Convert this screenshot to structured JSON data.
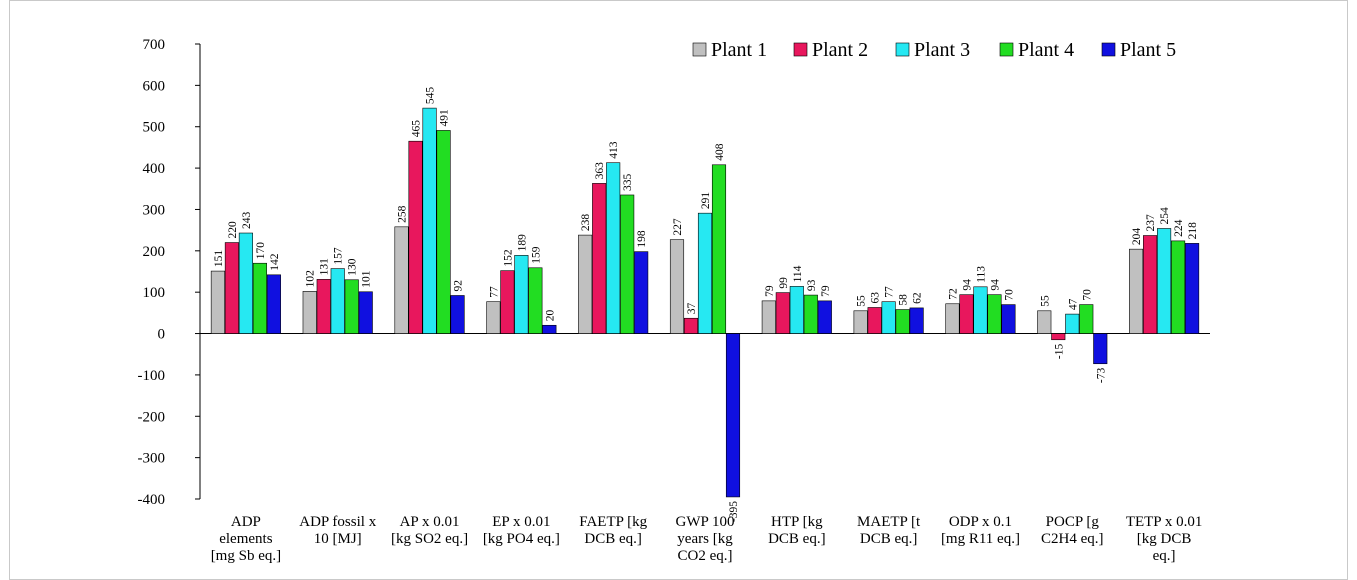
{
  "chart_data": {
    "type": "bar",
    "categories": [
      [
        "ADP",
        "elements",
        "[mg Sb eq.]"
      ],
      [
        "ADP fossil x",
        "10 [MJ]"
      ],
      [
        "AP x 0.01",
        "[kg SO2 eq.]"
      ],
      [
        "EP x 0.01",
        "[kg PO4 eq.]"
      ],
      [
        "FAETP [kg",
        "DCB eq.]"
      ],
      [
        "GWP 100",
        "years [kg",
        "CO2 eq.]"
      ],
      [
        "HTP [kg",
        "DCB eq.]"
      ],
      [
        "MAETP [t",
        "DCB eq.]"
      ],
      [
        "ODP x 0.1",
        "[mg R11 eq.]"
      ],
      [
        "POCP [g",
        "C2H4 eq.]"
      ],
      [
        "TETP x 0.01",
        "[kg DCB",
        "eq.]"
      ]
    ],
    "series": [
      {
        "name": "Plant 1",
        "color": "#c0c0c0",
        "values": [
          151,
          102,
          258,
          77,
          238,
          227,
          79,
          55,
          72,
          55,
          204
        ]
      },
      {
        "name": "Plant 2",
        "color": "#e8175d",
        "values": [
          220,
          131,
          465,
          152,
          363,
          37,
          99,
          63,
          94,
          -15,
          237
        ]
      },
      {
        "name": "Plant 3",
        "color": "#26e8f2",
        "values": [
          243,
          157,
          545,
          189,
          413,
          291,
          114,
          77,
          113,
          47,
          254
        ]
      },
      {
        "name": "Plant 4",
        "color": "#22dd22",
        "values": [
          170,
          130,
          491,
          159,
          335,
          408,
          93,
          58,
          94,
          70,
          224
        ]
      },
      {
        "name": "Plant 5",
        "color": "#1010e0",
        "values": [
          142,
          101,
          92,
          20,
          198,
          -395,
          79,
          62,
          70,
          -73,
          218
        ]
      }
    ],
    "ylim": [
      -400,
      700
    ],
    "yticks": [
      700,
      600,
      500,
      400,
      300,
      200,
      100,
      0,
      -100,
      -200,
      -300,
      -400
    ],
    "legend_position": "top-right",
    "grid": false
  }
}
